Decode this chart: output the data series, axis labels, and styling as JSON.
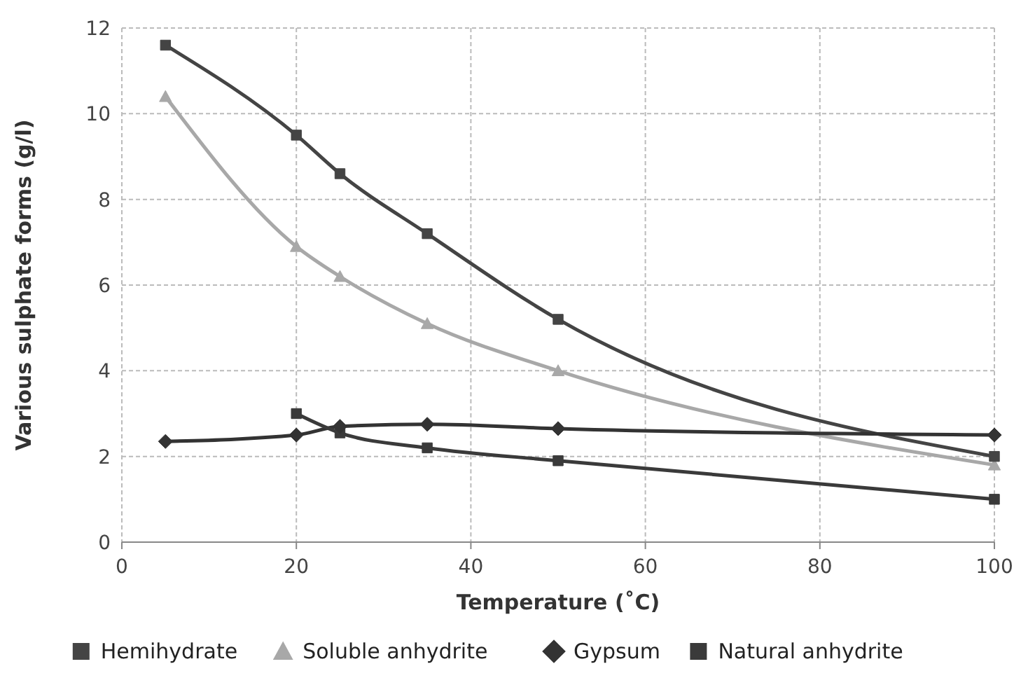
{
  "chart_data": {
    "type": "line",
    "xlabel": "Temperature (˚C)",
    "ylabel": "Various sulphate forms (g/l)",
    "xlim": [
      0,
      100
    ],
    "xticks": [
      0,
      20,
      40,
      60,
      80,
      100
    ],
    "ylim": [
      0,
      12
    ],
    "yticks": [
      0,
      2,
      4,
      6,
      8,
      10,
      12
    ],
    "grid": true,
    "legend": "bottom",
    "series": [
      {
        "name": "Hemihydrate",
        "color": "#444444",
        "marker": "square",
        "x": [
          5,
          20,
          25,
          35,
          50,
          100
        ],
        "values": [
          11.6,
          9.5,
          8.6,
          7.2,
          5.2,
          2.0
        ]
      },
      {
        "name": "Soluble anhydrite",
        "color": "#a8a8a8",
        "marker": "triangle",
        "x": [
          5,
          20,
          25,
          35,
          50,
          100
        ],
        "values": [
          10.4,
          6.9,
          6.2,
          5.1,
          4.0,
          1.8
        ]
      },
      {
        "name": "Gypsum",
        "color": "#333333",
        "marker": "diamond",
        "x": [
          5,
          20,
          25,
          35,
          50,
          100
        ],
        "values": [
          2.35,
          2.5,
          2.7,
          2.75,
          2.65,
          2.5
        ]
      },
      {
        "name": "Natural anhydrite",
        "color": "#3a3a3a",
        "marker": "square",
        "x": [
          20,
          25,
          35,
          50,
          100
        ],
        "values": [
          3.0,
          2.55,
          2.2,
          1.9,
          1.0
        ]
      }
    ]
  }
}
